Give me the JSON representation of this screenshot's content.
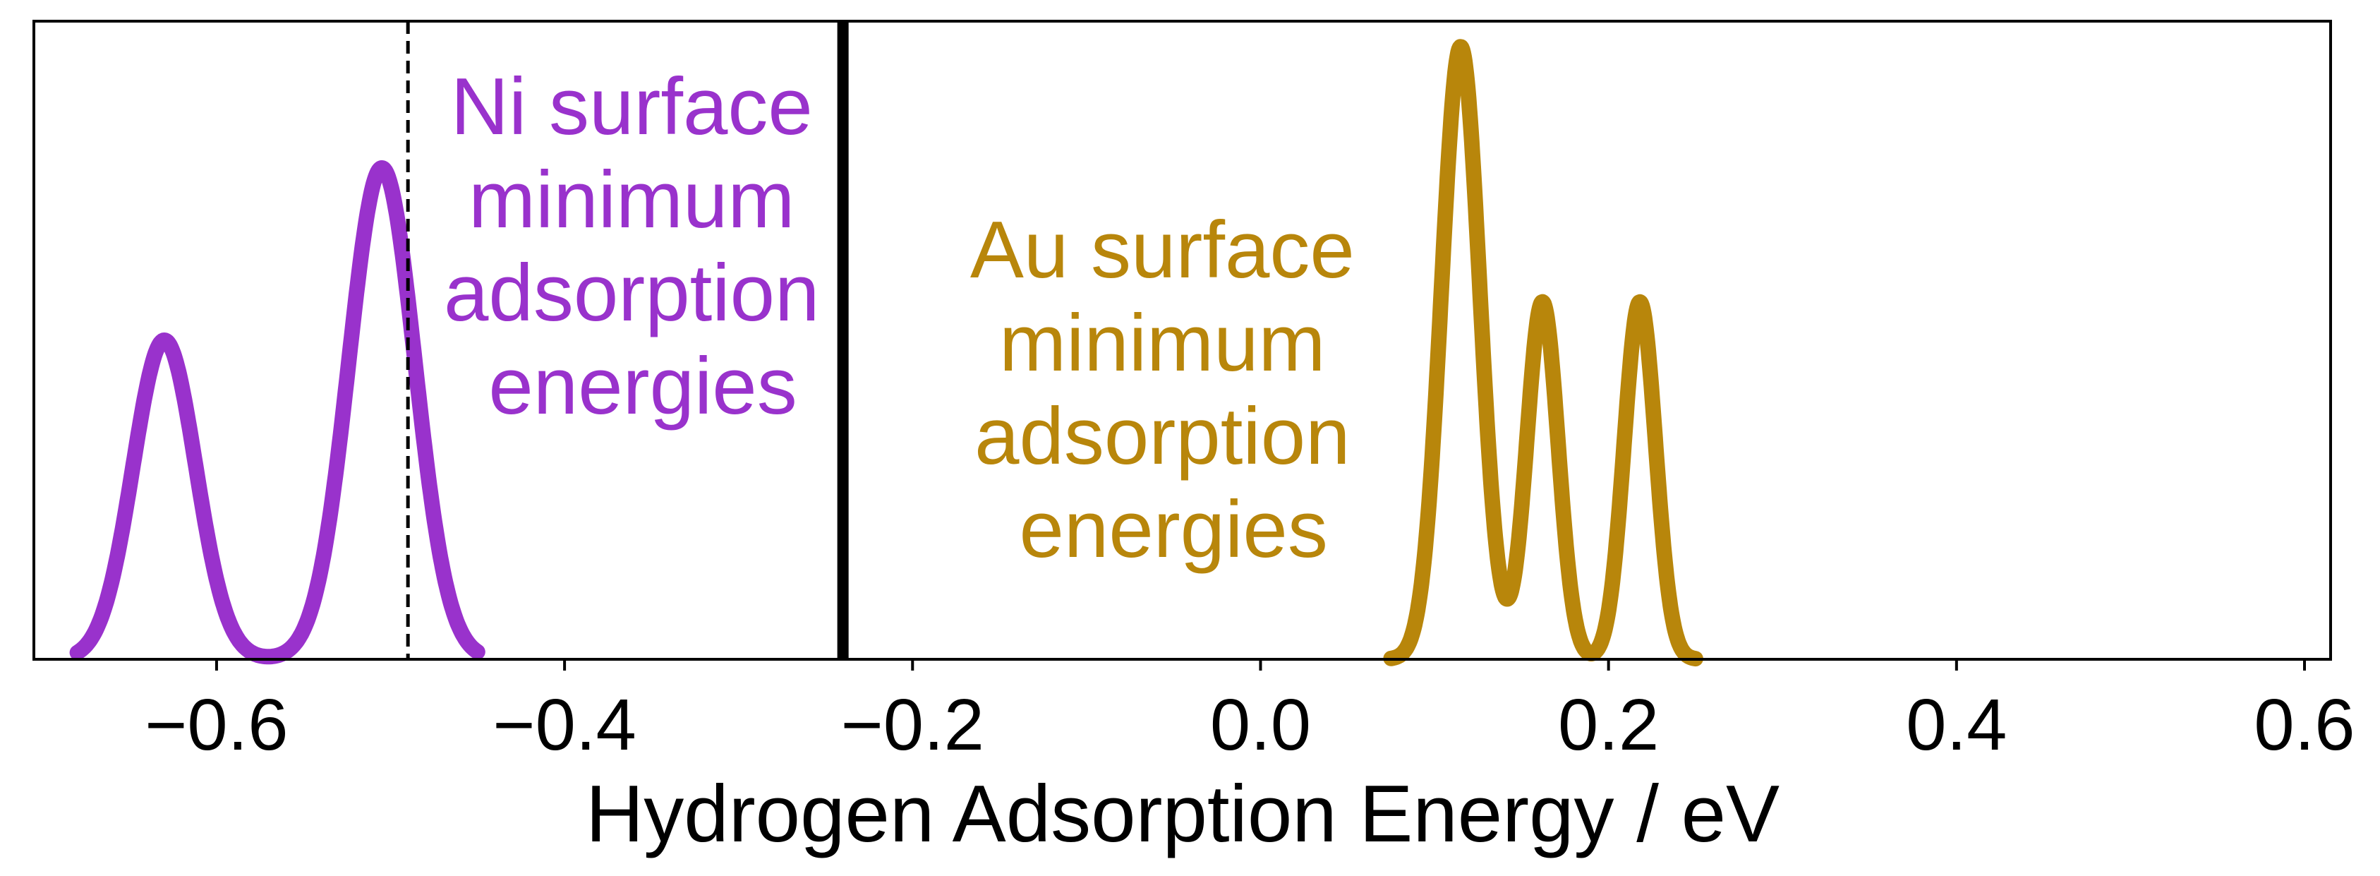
{
  "chart_data": {
    "type": "line",
    "title": "",
    "xlabel": "Hydrogen Adsorption Energy / eV",
    "ylabel": "",
    "xlim": [
      -0.705,
      0.615
    ],
    "ylim": [
      0,
      1.0
    ],
    "x_ticks": [
      -0.6,
      -0.4,
      -0.2,
      0.0,
      0.2,
      0.4,
      0.6
    ],
    "x_tick_labels": [
      "−0.6",
      "−0.4",
      "−0.2",
      "0.0",
      "0.2",
      "0.4",
      "0.6"
    ],
    "y_ticks_visible": false,
    "grid": false,
    "legend": "none",
    "series": [
      {
        "color": "#9932CC",
        "x_range": [
          -0.68,
          -0.45
        ],
        "peaks": [
          {
            "center": -0.63,
            "height": 0.5,
            "sigma": 0.018
          },
          {
            "center": -0.505,
            "height": 0.77,
            "sigma": 0.019
          }
        ]
      },
      {
        "color": "#B8860B",
        "x_range": [
          0.075,
          0.25
        ],
        "peaks": [
          {
            "center": 0.115,
            "height": 0.96,
            "sigma": 0.011
          },
          {
            "center": 0.162,
            "height": 0.56,
            "sigma": 0.009
          },
          {
            "center": 0.218,
            "height": 0.56,
            "sigma": 0.009
          }
        ]
      }
    ],
    "vlines": [
      {
        "x": -0.49,
        "style": "dashed",
        "color": "#000000",
        "width": 5
      },
      {
        "x": -0.24,
        "style": "solid",
        "color": "#000000",
        "width": 16
      }
    ],
    "annotations": [
      {
        "lines": [
          "Ni surface",
          "minimum",
          "adsorption",
          "energies"
        ],
        "x": -0.355,
        "color": "#9932CC"
      },
      {
        "lines": [
          "Au surface",
          "minimum",
          "adsorption",
          "energies"
        ],
        "x": -0.05,
        "color": "#B8860B"
      }
    ]
  }
}
